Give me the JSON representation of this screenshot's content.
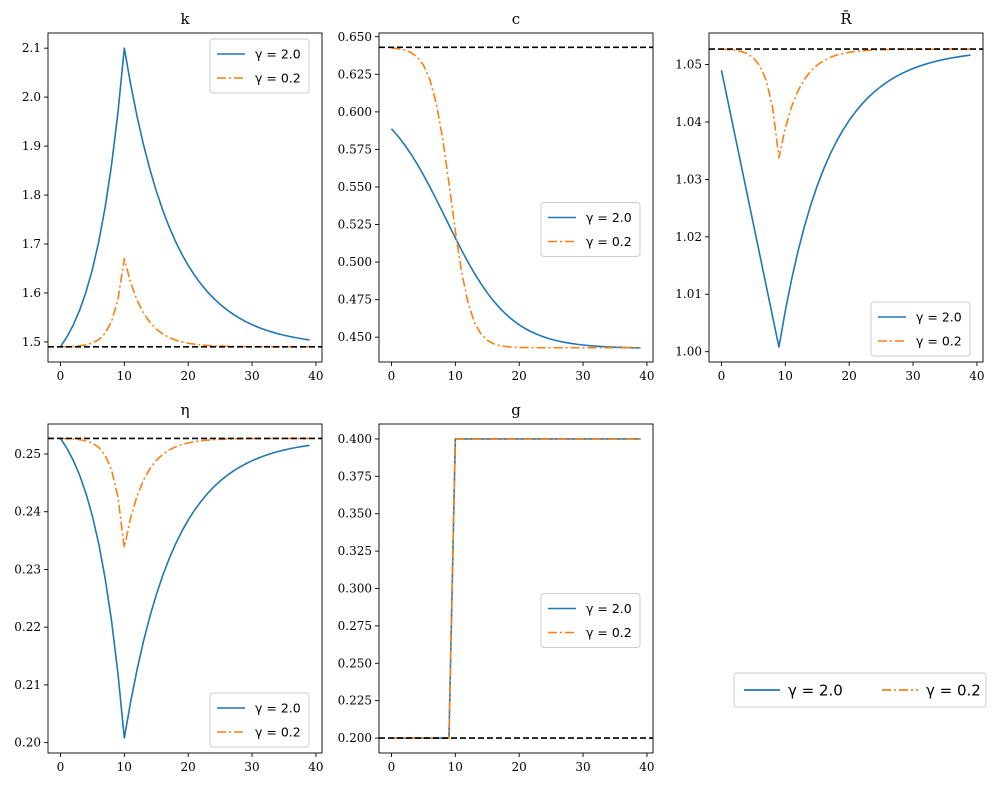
{
  "figure": {
    "legend_entries": [
      {
        "label": "γ = 2.0",
        "color": "#1f77b4",
        "dash": "solid"
      },
      {
        "label": "γ = 0.2",
        "color": "#ff7f0e",
        "dash": "dashdot"
      }
    ],
    "legend_placement": "bottom-right (outside panels)"
  },
  "chart_data": [
    {
      "type": "line",
      "title": "k",
      "xlim": [
        -1.95,
        40.95
      ],
      "ylim": [
        1.459,
        2.131
      ],
      "xticks": [
        0,
        10,
        20,
        30,
        40
      ],
      "xtick_labels": [
        "0",
        "10",
        "20",
        "30",
        "40"
      ],
      "yticks": [
        1.5,
        1.6,
        1.7,
        1.8,
        1.9,
        2.0,
        2.1
      ],
      "ytick_labels": [
        "1.5",
        "1.6",
        "1.7",
        "1.8",
        "1.9",
        "2.0",
        "2.1"
      ],
      "hline": 1.49,
      "legend": "upper right",
      "series": [
        {
          "name": "γ = 2.0",
          "color": "#1f77b4",
          "dash": "solid",
          "kind": "peak",
          "base": 1.49,
          "peak": 2.1,
          "peak_at": 10,
          "rise_rate": 0.21,
          "decay_rate": 0.13
        },
        {
          "name": "γ = 0.2",
          "color": "#ff7f0e",
          "dash": "dashdot",
          "kind": "peak",
          "base": 1.49,
          "peak": 1.67,
          "peak_at": 10,
          "rise_rate": 0.62,
          "decay_rate": 0.32
        }
      ]
    },
    {
      "type": "line",
      "title": "c",
      "xlim": [
        -1.95,
        40.95
      ],
      "ylim": [
        0.4335,
        0.6525
      ],
      "xticks": [
        0,
        10,
        20,
        30,
        40
      ],
      "xtick_labels": [
        "0",
        "10",
        "20",
        "30",
        "40"
      ],
      "yticks": [
        0.45,
        0.475,
        0.5,
        0.525,
        0.55,
        0.575,
        0.6,
        0.625,
        0.65
      ],
      "ytick_labels": [
        "0.450",
        "0.475",
        "0.500",
        "0.525",
        "0.550",
        "0.575",
        "0.600",
        "0.625",
        "0.650"
      ],
      "hline": 0.643,
      "legend": "center right",
      "series": [
        {
          "name": "γ = 2.0",
          "color": "#1f77b4",
          "dash": "solid",
          "kind": "sigmoid",
          "high": 0.6155,
          "low": 0.4425,
          "center": 8.5,
          "width": 5.0
        },
        {
          "name": "γ = 0.2",
          "color": "#ff7f0e",
          "dash": "dashdot",
          "kind": "sigmoid",
          "high": 0.643,
          "low": 0.443,
          "center": 9.3,
          "width": 1.55
        }
      ]
    },
    {
      "type": "line",
      "title": "R̄",
      "xlim": [
        -1.95,
        40.95
      ],
      "ylim": [
        0.9982,
        1.0555
      ],
      "xticks": [
        0,
        10,
        20,
        30,
        40
      ],
      "xtick_labels": [
        "0",
        "10",
        "20",
        "30",
        "40"
      ],
      "yticks": [
        1.0,
        1.01,
        1.02,
        1.03,
        1.04,
        1.05
      ],
      "ytick_labels": [
        "1.00",
        "1.01",
        "1.02",
        "1.03",
        "1.04",
        "1.05"
      ],
      "hline": 1.0527,
      "legend": "lower right",
      "series": [
        {
          "name": "γ = 2.0",
          "color": "#1f77b4",
          "dash": "solid",
          "kind": "dip",
          "base": 1.0527,
          "start": 1.049,
          "trough": 1.0008,
          "trough_at": 9,
          "decay_rate": 0.13
        },
        {
          "name": "γ = 0.2",
          "color": "#ff7f0e",
          "dash": "dashdot",
          "kind": "dip",
          "base": 1.0527,
          "start": 1.0527,
          "trough": 1.0338,
          "trough_at": 9,
          "rise_rate": 0.62,
          "decay_rate": 0.32
        }
      ]
    },
    {
      "type": "line",
      "title": "η",
      "xlim": [
        -1.95,
        40.95
      ],
      "ylim": [
        0.1982,
        0.2552
      ],
      "xticks": [
        0,
        10,
        20,
        30,
        40
      ],
      "xtick_labels": [
        "0",
        "10",
        "20",
        "30",
        "40"
      ],
      "yticks": [
        0.2,
        0.21,
        0.22,
        0.23,
        0.24,
        0.25
      ],
      "ytick_labels": [
        "0.20",
        "0.21",
        "0.22",
        "0.23",
        "0.24",
        "0.25"
      ],
      "hline": 0.2527,
      "legend": "lower right",
      "series": [
        {
          "name": "γ = 2.0",
          "color": "#1f77b4",
          "dash": "solid",
          "kind": "dip",
          "base": 0.2527,
          "start": 0.2527,
          "trough": 0.2008,
          "trough_at": 10,
          "rise_rate": 0.21,
          "decay_rate": 0.13
        },
        {
          "name": "γ = 0.2",
          "color": "#ff7f0e",
          "dash": "dashdot",
          "kind": "dip",
          "base": 0.2527,
          "start": 0.2527,
          "trough": 0.2338,
          "trough_at": 10,
          "rise_rate": 0.62,
          "decay_rate": 0.32
        }
      ]
    },
    {
      "type": "line",
      "title": "g",
      "xlim": [
        -1.95,
        40.95
      ],
      "ylim": [
        0.19,
        0.41
      ],
      "xticks": [
        0,
        10,
        20,
        30,
        40
      ],
      "xtick_labels": [
        "0",
        "10",
        "20",
        "30",
        "40"
      ],
      "yticks": [
        0.2,
        0.225,
        0.25,
        0.275,
        0.3,
        0.325,
        0.35,
        0.375,
        0.4
      ],
      "ytick_labels": [
        "0.200",
        "0.225",
        "0.250",
        "0.275",
        "0.300",
        "0.325",
        "0.350",
        "0.375",
        "0.400"
      ],
      "hline": 0.2,
      "legend": "center right",
      "series": [
        {
          "name": "γ = 2.0",
          "color": "#1f77b4",
          "dash": "solid",
          "kind": "step",
          "before": 0.2,
          "after": 0.4,
          "step_at": 10
        },
        {
          "name": "γ = 0.2",
          "color": "#ff7f0e",
          "dash": "dashdot",
          "kind": "step",
          "before": 0.2,
          "after": 0.4,
          "step_at": 10
        }
      ]
    }
  ]
}
